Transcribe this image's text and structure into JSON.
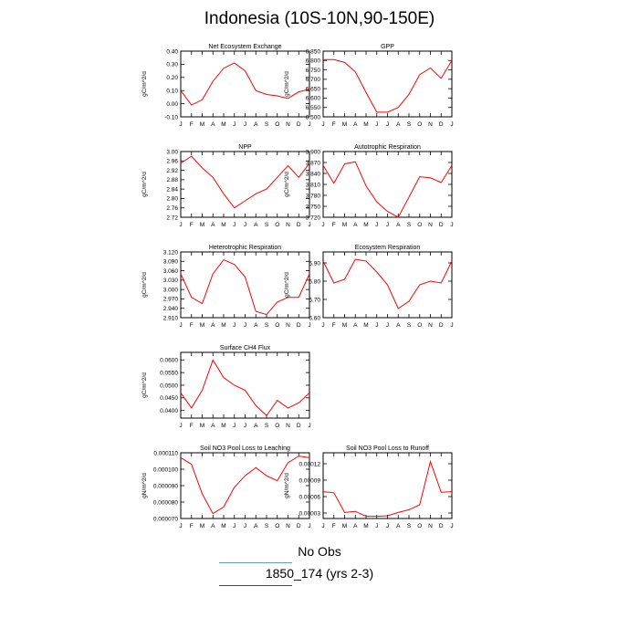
{
  "title": "Indonesia (10S-10N,90-150E)",
  "months": [
    "J",
    "F",
    "M",
    "A",
    "M",
    "J",
    "J",
    "A",
    "S",
    "O",
    "N",
    "D",
    "J"
  ],
  "colors": {
    "model": "#ff0000",
    "obs": "#6699cc"
  },
  "legend": {
    "obs_label": "No Obs",
    "model_label": "1850_174 (yrs 2-3)"
  },
  "chart_data": [
    {
      "type": "line",
      "title": "Net Ecosystem Exchange",
      "ylabel": "gC/m^2/d",
      "ylim": [
        -0.1,
        0.4
      ],
      "yticks": [
        "-0.10",
        "0.00",
        "0.10",
        "0.20",
        "0.30",
        "0.40"
      ],
      "ytick_values": [
        -0.1,
        0.0,
        0.1,
        0.2,
        0.3,
        0.4
      ],
      "values": [
        0.1,
        -0.01,
        0.03,
        0.17,
        0.27,
        0.31,
        0.25,
        0.1,
        0.07,
        0.06,
        0.04,
        0.09,
        0.11
      ]
    },
    {
      "type": "line",
      "title": "GPP",
      "ylabel": "gC/m^2/d",
      "ylim": [
        6.5,
        6.85
      ],
      "yticks": [
        "6.500",
        "6.550",
        "6.600",
        "6.650",
        "6.700",
        "6.750",
        "6.800",
        "6.850"
      ],
      "ytick_values": [
        6.5,
        6.55,
        6.6,
        6.65,
        6.7,
        6.75,
        6.8,
        6.85
      ],
      "values": [
        6.805,
        6.805,
        6.79,
        6.74,
        6.63,
        6.525,
        6.525,
        6.55,
        6.62,
        6.725,
        6.76,
        6.705,
        6.8
      ]
    },
    {
      "type": "line",
      "title": "NPP",
      "ylabel": "gC/m^2/d",
      "ylim": [
        2.72,
        3.0
      ],
      "yticks": [
        "2.72",
        "2.76",
        "2.80",
        "2.84",
        "2.88",
        "2.92",
        "2.96",
        "3.00"
      ],
      "ytick_values": [
        2.72,
        2.76,
        2.8,
        2.84,
        2.88,
        2.92,
        2.96,
        3.0
      ],
      "values": [
        2.95,
        2.98,
        2.93,
        2.89,
        2.82,
        2.76,
        2.79,
        2.82,
        2.84,
        2.89,
        2.94,
        2.89,
        2.95
      ]
    },
    {
      "type": "line",
      "title": "Autotrophic Respiration",
      "ylabel": "gC/m^2/d",
      "ylim": [
        3.72,
        3.9
      ],
      "yticks": [
        "3.720",
        "3.750",
        "3.780",
        "3.810",
        "3.840",
        "3.870",
        "3.900"
      ],
      "ytick_values": [
        3.72,
        3.75,
        3.78,
        3.81,
        3.84,
        3.87,
        3.9
      ],
      "values": [
        3.862,
        3.813,
        3.866,
        3.872,
        3.806,
        3.762,
        3.736,
        3.72,
        3.775,
        3.831,
        3.828,
        3.815,
        3.862
      ]
    },
    {
      "type": "line",
      "title": "Heterotrophic Respiration",
      "ylabel": "gC/m^2/d",
      "ylim": [
        2.91,
        3.12
      ],
      "yticks": [
        "2.910",
        "2.940",
        "2.970",
        "3.000",
        "3.030",
        "3.060",
        "3.090",
        "3.120"
      ],
      "ytick_values": [
        2.91,
        2.94,
        2.97,
        3.0,
        3.03,
        3.06,
        3.09,
        3.12
      ],
      "values": [
        3.05,
        2.975,
        2.955,
        3.05,
        3.095,
        3.08,
        3.04,
        2.93,
        2.92,
        2.96,
        2.975,
        2.975,
        3.05
      ]
    },
    {
      "type": "line",
      "title": "Ecosystem Respiration",
      "ylabel": "gC/m^2/d",
      "ylim": [
        6.6,
        6.96
      ],
      "yticks": [
        "6.60",
        "6.70",
        "6.80",
        "6.90"
      ],
      "ytick_values": [
        6.6,
        6.7,
        6.8,
        6.9
      ],
      "values": [
        6.91,
        6.79,
        6.81,
        6.92,
        6.91,
        6.85,
        6.78,
        6.65,
        6.69,
        6.78,
        6.8,
        6.79,
        6.91
      ]
    },
    {
      "type": "line",
      "title": "Surface CH4 Flux",
      "ylabel": "gC/m^2/d",
      "ylim": [
        0.037,
        0.063
      ],
      "yticks": [
        "0.0400",
        "0.0450",
        "0.0500",
        "0.0550",
        "0.0600"
      ],
      "ytick_values": [
        0.04,
        0.045,
        0.05,
        0.055,
        0.06
      ],
      "values": [
        0.047,
        0.041,
        0.048,
        0.06,
        0.053,
        0.05,
        0.048,
        0.042,
        0.038,
        0.044,
        0.041,
        0.043,
        0.047
      ]
    },
    {
      "type": "line",
      "title": "Soil NO3 Pool Loss to Leaching",
      "ylabel": "gN/m^2/d",
      "ylim": [
        7e-05,
        0.00011
      ],
      "yticks": [
        "0.000070",
        "0.000080",
        "0.000090",
        "0.000100",
        "0.000110"
      ],
      "ytick_values": [
        7e-05,
        8e-05,
        9e-05,
        0.0001,
        0.00011
      ],
      "values": [
        0.000107,
        0.000103,
        8.5e-05,
        7.3e-05,
        7.7e-05,
        8.9e-05,
        9.6e-05,
        0.000101,
        9.6e-05,
        9.3e-05,
        0.000104,
        0.000108,
        0.000107
      ]
    },
    {
      "type": "line",
      "title": "Soil NO3 Pool Loss to Runoff",
      "ylabel": "gN/m^2/d",
      "ylim": [
        2e-05,
        0.00014
      ],
      "yticks": [
        "0.00003",
        "0.00006",
        "0.00009",
        "0.00012"
      ],
      "ytick_values": [
        3e-05,
        6e-05,
        9e-05,
        0.00012
      ],
      "values": [
        6.9e-05,
        6.7e-05,
        3.1e-05,
        3.3e-05,
        2.4e-05,
        2.4e-05,
        2.5e-05,
        3.1e-05,
        3.6e-05,
        4.5e-05,
        0.000124,
        6.8e-05,
        6.9e-05
      ]
    }
  ]
}
